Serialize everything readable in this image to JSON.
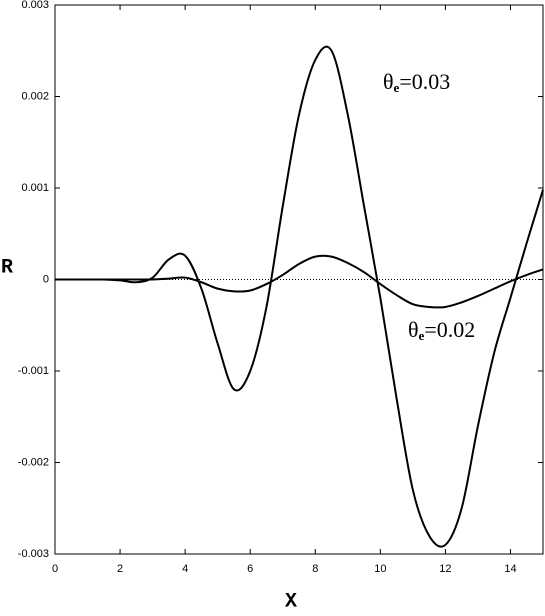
{
  "chart_data": {
    "type": "line",
    "xlabel": "X",
    "ylabel": "R",
    "x": [
      0,
      0.5,
      1,
      1.5,
      2,
      2.5,
      3,
      3.5,
      4,
      4.5,
      5,
      5.5,
      6,
      6.5,
      7,
      7.5,
      8,
      8.5,
      9,
      9.5,
      10,
      10.5,
      11,
      11.5,
      12,
      12.5,
      13,
      13.5,
      14,
      14.5,
      15
    ],
    "series": [
      {
        "color": "#000000",
        "label": {
          "symbol": "θ",
          "subscript": "e",
          "text": "=0.03"
        },
        "values": [
          0,
          0,
          0,
          0,
          -1e-05,
          -3e-05,
          2e-05,
          0.00022,
          0.00026,
          -0.0001,
          -0.0007,
          -0.0012,
          -0.001,
          -0.0003,
          0.0008,
          0.0018,
          0.0024,
          0.0025,
          0.0018,
          0.0008,
          -0.0002,
          -0.0013,
          -0.0023,
          -0.0028,
          -0.0029,
          -0.0025,
          -0.0016,
          -0.0008,
          -0.0002,
          0.0004,
          0.00098
        ]
      },
      {
        "color": "#000000",
        "label": {
          "symbol": "θ",
          "subscript": "e",
          "text": "=0.02"
        },
        "values": [
          0,
          0,
          0,
          0,
          0,
          0,
          0,
          1e-05,
          2e-05,
          -3e-05,
          -0.0001,
          -0.00013,
          -0.00012,
          -5e-05,
          5e-05,
          0.00017,
          0.00025,
          0.00025,
          0.00018,
          8e-05,
          -5e-05,
          -0.00017,
          -0.00027,
          -0.0003,
          -0.0003,
          -0.00025,
          -0.00018,
          -0.0001,
          -2e-05,
          5e-05,
          0.00011
        ]
      }
    ],
    "xlim": [
      0,
      15
    ],
    "xticks": [
      0,
      2,
      4,
      6,
      8,
      10,
      12,
      14
    ],
    "ylim": [
      -0.003,
      0.003
    ],
    "yticks": [
      -0.003,
      -0.002,
      -0.001,
      0,
      0.001,
      0.002,
      0.003
    ],
    "zero_line": true
  }
}
